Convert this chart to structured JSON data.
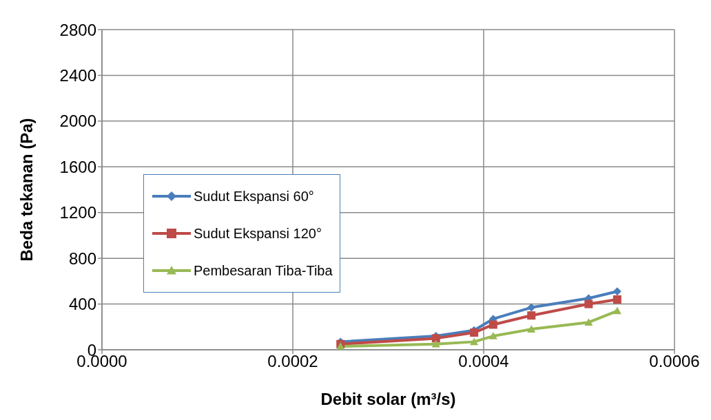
{
  "chart_data": {
    "type": "line",
    "xlabel": "Debit  solar (m³/s)",
    "ylabel": "Beda tekanan (Pa)",
    "x": [
      0.00025,
      0.00035,
      0.00039,
      0.00041,
      0.00045,
      0.00051,
      0.00054
    ],
    "series": [
      {
        "name": "Sudut Ekspansi 60°",
        "color": "#4a7ebb",
        "marker": "diamond",
        "values": [
          70,
          120,
          170,
          270,
          370,
          450,
          510
        ]
      },
      {
        "name": "Sudut Ekspansi 120°",
        "color": "#be4b48",
        "marker": "square",
        "values": [
          50,
          100,
          150,
          220,
          300,
          400,
          440
        ]
      },
      {
        "name": "Pembesaran Tiba-Tiba",
        "color": "#98b954",
        "marker": "triangle",
        "values": [
          30,
          50,
          70,
          120,
          180,
          240,
          340
        ]
      }
    ],
    "xlim": [
      0,
      0.0006
    ],
    "xticks": [
      {
        "value": 0,
        "label": "0.0000"
      },
      {
        "value": 0.0002,
        "label": "0.0002"
      },
      {
        "value": 0.0004,
        "label": "0.0004"
      },
      {
        "value": 0.0006,
        "label": "0.0006"
      }
    ],
    "ylim": [
      0,
      2800
    ],
    "yticks": [
      0,
      400,
      800,
      1200,
      1600,
      2000,
      2400,
      2800
    ],
    "grid": true,
    "legend": "left",
    "line_style": "solid"
  }
}
